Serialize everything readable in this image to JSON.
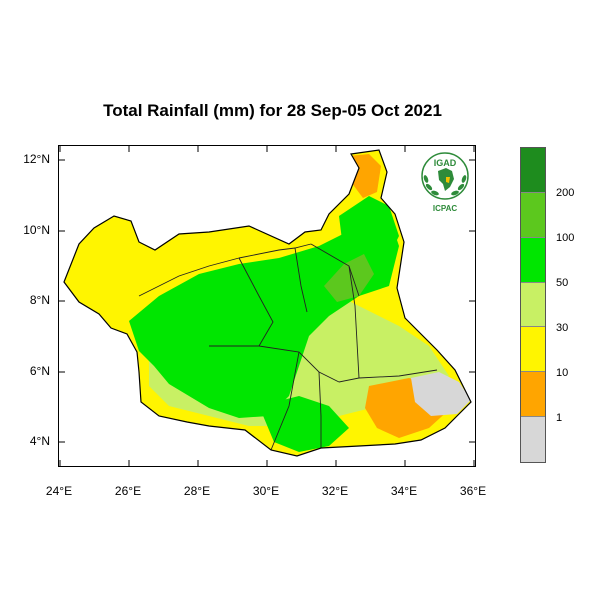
{
  "title": "Total Rainfall (mm) for 28 Sep-05 Oct 2021",
  "axes": {
    "y_ticks": [
      "12°N",
      "10°N",
      "8°N",
      "6°N",
      "4°N"
    ],
    "x_ticks": [
      "24°E",
      "26°E",
      "28°E",
      "30°E",
      "32°E",
      "34°E",
      "36°E"
    ]
  },
  "legend": {
    "colors": [
      "#1e8c1e",
      "#5cc81e",
      "#00e600",
      "#c8f064",
      "#fff500",
      "#ffa500",
      "#d7d7d7"
    ],
    "labels": [
      "200",
      "100",
      "50",
      "30",
      "10",
      "1"
    ]
  },
  "logo": {
    "top_text": "IGAD",
    "bottom_text": "ICPAC"
  }
}
